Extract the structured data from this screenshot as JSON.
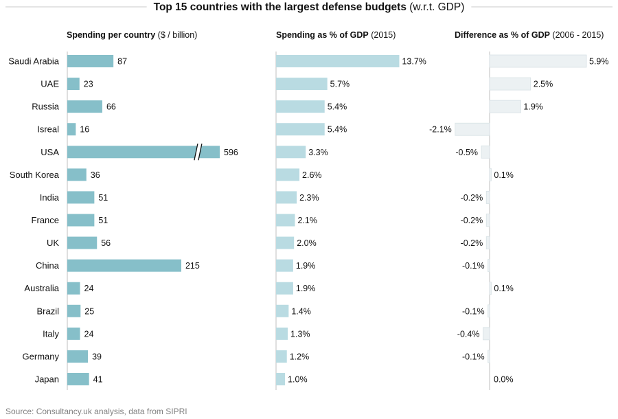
{
  "title": {
    "bold": "Top 15 countries with the largest defense budgets",
    "normal": " (w.r.t. GDP)"
  },
  "source": "Source: Consultancy.uk analysis, data from SIPRI",
  "colors": {
    "spending": "#86bfc9",
    "gdp": "#b9dbe2",
    "diff": "#ecf1f3",
    "diff_stroke": "#d7e1e5",
    "axis": "#bfbfbf",
    "rule": "#c8c8c8"
  },
  "chart_data": {
    "type": "bar",
    "categories": [
      "Saudi Arabia",
      "UAE",
      "Russia",
      "Isreal",
      "USA",
      "South Korea",
      "India",
      "France",
      "UK",
      "China",
      "Australia",
      "Brazil",
      "Italy",
      "Germany",
      "Japan"
    ],
    "series": [
      {
        "name": "Spending per country",
        "title_bold": "Spending per country",
        "title_normal": " ($ / billion)",
        "values": [
          87,
          23,
          66,
          16,
          596,
          36,
          51,
          51,
          56,
          215,
          24,
          25,
          24,
          39,
          41
        ],
        "labels": [
          "87",
          "23",
          "66",
          "16",
          "596",
          "36",
          "51",
          "51",
          "56",
          "215",
          "24",
          "25",
          "24",
          "39",
          "41"
        ],
        "axis_break": "USA"
      },
      {
        "name": "Spending as % of GDP",
        "title_bold": "Spending as % of GDP",
        "title_normal": " (2015)",
        "values": [
          13.7,
          5.7,
          5.4,
          5.4,
          3.3,
          2.6,
          2.3,
          2.1,
          2.0,
          1.9,
          1.9,
          1.4,
          1.3,
          1.2,
          1.0
        ],
        "labels": [
          "13.7%",
          "5.7%",
          "5.4%",
          "5.4%",
          "3.3%",
          "2.6%",
          "2.3%",
          "2.1%",
          "2.0%",
          "1.9%",
          "1.9%",
          "1.4%",
          "1.3%",
          "1.2%",
          "1.0%"
        ]
      },
      {
        "name": "Difference as % of GDP",
        "title_bold": "Difference as % of GDP",
        "title_normal": " (2006 - 2015)",
        "values": [
          5.9,
          2.5,
          1.9,
          -2.1,
          -0.5,
          0.1,
          -0.2,
          -0.2,
          -0.2,
          -0.1,
          0.1,
          -0.1,
          -0.4,
          -0.1,
          0.0
        ],
        "labels": [
          "5.9%",
          "2.5%",
          "1.9%",
          "-2.1%",
          "-0.5%",
          "0.1%",
          "-0.2%",
          "-0.2%",
          "-0.2%",
          "-0.1%",
          "0.1%",
          "-0.1%",
          "-0.4%",
          "-0.1%",
          "0.0%"
        ]
      }
    ]
  }
}
